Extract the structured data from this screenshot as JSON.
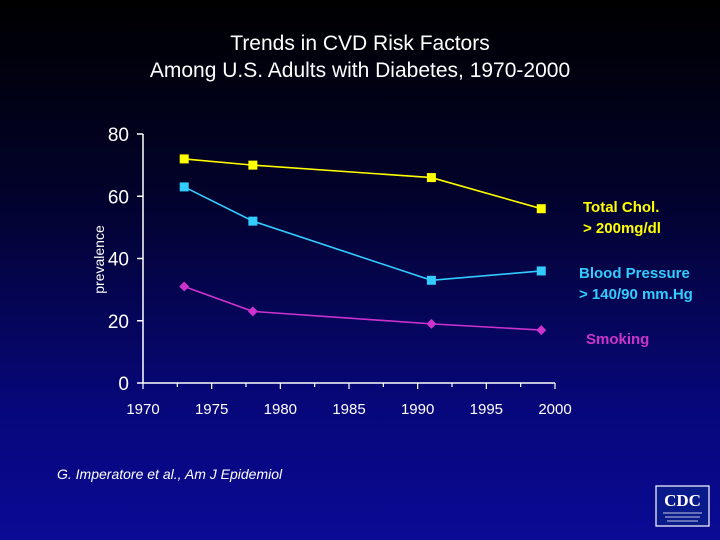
{
  "title_line1": "Trends in CVD Risk Factors",
  "title_line2": "Among U.S. Adults with Diabetes, 1970-2000",
  "citation": "G. Imperatore et al., Am J Epidemiol",
  "logo_text": "CDC",
  "colors": {
    "background": "#05054a",
    "axis": "#ffffff",
    "total_chol": "#ffff00",
    "blood_pressure": "#33ccff",
    "smoking": "#cc33cc"
  },
  "chart_data": {
    "type": "line",
    "ylabel": "prevalence",
    "xlabel": "",
    "xlim": [
      1970,
      2000
    ],
    "ylim": [
      0,
      80
    ],
    "x_ticks": [
      "1970",
      "1975",
      "1980",
      "1985",
      "1990",
      "1995",
      "2000"
    ],
    "y_ticks": [
      "0",
      "20",
      "40",
      "60",
      "80"
    ],
    "grid": false,
    "legend": "right, labels beside line ends",
    "series": [
      {
        "name": "Total Chol. > 200mg/dl",
        "label_lines": [
          "Total Chol.",
          "> 200mg/dl"
        ],
        "marker": "square",
        "color": "#ffff00",
        "x": [
          1973,
          1978,
          1991,
          1999
        ],
        "y": [
          72,
          70,
          66,
          56
        ]
      },
      {
        "name": "Blood Pressure > 140/90 mm.Hg",
        "label_lines": [
          "Blood Pressure",
          "> 140/90 mm.Hg"
        ],
        "marker": "square",
        "color": "#33ccff",
        "x": [
          1973,
          1978,
          1991,
          1999
        ],
        "y": [
          63,
          52,
          33,
          36
        ]
      },
      {
        "name": "Smoking",
        "label_lines": [
          "Smoking"
        ],
        "marker": "diamond",
        "color": "#cc33cc",
        "x": [
          1973,
          1978,
          1991,
          1999
        ],
        "y": [
          31,
          23,
          19,
          17
        ]
      }
    ]
  }
}
